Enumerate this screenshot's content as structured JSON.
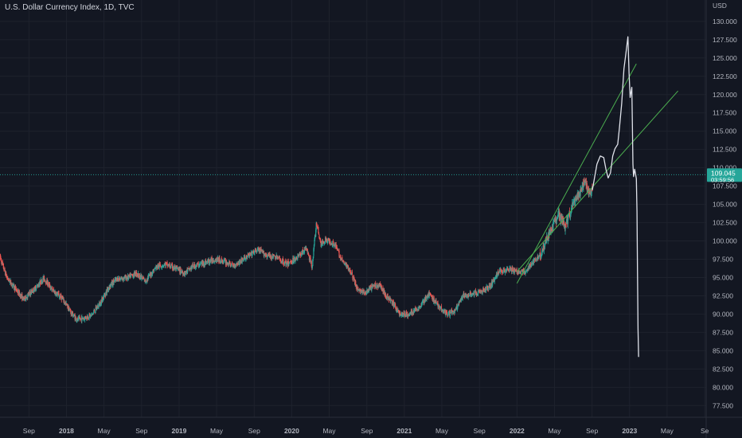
{
  "title": "U.S. Dollar Currency Index, 1D, TVC",
  "currency": "USD",
  "colors": {
    "background": "#131722",
    "up": "#26a69a",
    "down": "#ef5350",
    "channel": "#4caf50",
    "drawing": "#e0e3eb",
    "price_line": "#26a69a",
    "grid": "#1e222d"
  },
  "chart_data": {
    "type": "candlestick",
    "y_ticks": [
      "77.500",
      "80.000",
      "82.500",
      "85.000",
      "87.500",
      "90.000",
      "92.500",
      "95.000",
      "97.500",
      "100.000",
      "102.500",
      "105.000",
      "107.500",
      "110.000",
      "112.500",
      "115.000",
      "117.500",
      "120.000",
      "122.500",
      "125.000",
      "127.500",
      "130.000"
    ],
    "x_ticks": [
      {
        "label": "Sep",
        "t": 2017.667,
        "strong": false
      },
      {
        "label": "2018",
        "t": 2018.0,
        "strong": true
      },
      {
        "label": "May",
        "t": 2018.333,
        "strong": false
      },
      {
        "label": "Sep",
        "t": 2018.667,
        "strong": false
      },
      {
        "label": "2019",
        "t": 2019.0,
        "strong": true
      },
      {
        "label": "May",
        "t": 2019.333,
        "strong": false
      },
      {
        "label": "Sep",
        "t": 2019.667,
        "strong": false
      },
      {
        "label": "2020",
        "t": 2020.0,
        "strong": true
      },
      {
        "label": "May",
        "t": 2020.333,
        "strong": false
      },
      {
        "label": "Sep",
        "t": 2020.667,
        "strong": false
      },
      {
        "label": "2021",
        "t": 2021.0,
        "strong": true
      },
      {
        "label": "May",
        "t": 2021.333,
        "strong": false
      },
      {
        "label": "Sep",
        "t": 2021.667,
        "strong": false
      },
      {
        "label": "2022",
        "t": 2022.0,
        "strong": true
      },
      {
        "label": "May",
        "t": 2022.333,
        "strong": false
      },
      {
        "label": "Sep",
        "t": 2022.667,
        "strong": false
      },
      {
        "label": "2023",
        "t": 2023.0,
        "strong": true
      },
      {
        "label": "May",
        "t": 2023.333,
        "strong": false
      },
      {
        "label": "Se",
        "t": 2023.667,
        "strong": false
      }
    ],
    "x_range": [
      2017.41,
      2023.68
    ],
    "y_range": [
      75.9,
      131.4
    ],
    "price_trend": [
      [
        2017.41,
        97.8
      ],
      [
        2017.47,
        95.0
      ],
      [
        2017.55,
        93.4
      ],
      [
        2017.62,
        92.0
      ],
      [
        2017.72,
        93.5
      ],
      [
        2017.8,
        94.9
      ],
      [
        2017.88,
        93.2
      ],
      [
        2017.96,
        92.2
      ],
      [
        2018.05,
        90.0
      ],
      [
        2018.1,
        89.2
      ],
      [
        2018.22,
        89.8
      ],
      [
        2018.3,
        91.5
      ],
      [
        2018.38,
        93.8
      ],
      [
        2018.45,
        94.8
      ],
      [
        2018.55,
        95.0
      ],
      [
        2018.62,
        95.6
      ],
      [
        2018.7,
        94.5
      ],
      [
        2018.8,
        96.5
      ],
      [
        2018.88,
        96.8
      ],
      [
        2018.96,
        96.3
      ],
      [
        2019.05,
        95.6
      ],
      [
        2019.12,
        96.5
      ],
      [
        2019.22,
        97.0
      ],
      [
        2019.32,
        97.5
      ],
      [
        2019.4,
        97.2
      ],
      [
        2019.48,
        96.6
      ],
      [
        2019.55,
        97.3
      ],
      [
        2019.62,
        98.0
      ],
      [
        2019.7,
        98.8
      ],
      [
        2019.78,
        98.0
      ],
      [
        2019.86,
        97.8
      ],
      [
        2019.96,
        96.8
      ],
      [
        2020.05,
        97.8
      ],
      [
        2020.13,
        99.0
      ],
      [
        2020.18,
        96.5
      ],
      [
        2020.22,
        102.5
      ],
      [
        2020.26,
        99.5
      ],
      [
        2020.3,
        100.2
      ],
      [
        2020.38,
        99.6
      ],
      [
        2020.45,
        97.2
      ],
      [
        2020.52,
        96.0
      ],
      [
        2020.58,
        93.5
      ],
      [
        2020.65,
        92.8
      ],
      [
        2020.72,
        93.8
      ],
      [
        2020.78,
        94.0
      ],
      [
        2020.84,
        92.5
      ],
      [
        2020.9,
        91.4
      ],
      [
        2020.96,
        90.0
      ],
      [
        2021.04,
        89.9
      ],
      [
        2021.12,
        90.8
      ],
      [
        2021.22,
        92.7
      ],
      [
        2021.3,
        91.2
      ],
      [
        2021.38,
        90.0
      ],
      [
        2021.45,
        90.4
      ],
      [
        2021.52,
        92.4
      ],
      [
        2021.6,
        92.8
      ],
      [
        2021.68,
        93.0
      ],
      [
        2021.76,
        93.8
      ],
      [
        2021.84,
        95.8
      ],
      [
        2021.92,
        96.2
      ],
      [
        2022.0,
        95.8
      ],
      [
        2022.08,
        95.8
      ],
      [
        2022.15,
        97.2
      ],
      [
        2022.22,
        98.5
      ],
      [
        2022.3,
        101.5
      ],
      [
        2022.37,
        103.5
      ],
      [
        2022.43,
        102.0
      ],
      [
        2022.5,
        105.0
      ],
      [
        2022.56,
        106.5
      ],
      [
        2022.6,
        108.3
      ],
      [
        2022.64,
        106.5
      ],
      [
        2022.67,
        107.0
      ]
    ],
    "last_price": "109.045",
    "countdown": "03:59:56",
    "last_price_value": 109.045,
    "channel_lines": [
      {
        "from": [
          2022.0,
          94.2
        ],
        "to": [
          2023.06,
          124.2
        ]
      },
      {
        "from": [
          2022.0,
          95.8
        ],
        "to": [
          2023.43,
          120.5
        ]
      }
    ],
    "drawn_projection": [
      [
        2022.67,
        107.0
      ],
      [
        2022.71,
        110.5
      ],
      [
        2022.74,
        111.6
      ],
      [
        2022.77,
        111.4
      ],
      [
        2022.79,
        109.8
      ],
      [
        2022.81,
        108.6
      ],
      [
        2022.83,
        109.3
      ],
      [
        2022.85,
        111.6
      ],
      [
        2022.87,
        112.6
      ],
      [
        2022.895,
        113.2
      ],
      [
        2022.91,
        115.5
      ],
      [
        2022.93,
        118.8
      ],
      [
        2022.95,
        123.5
      ],
      [
        2022.97,
        126.0
      ],
      [
        2022.985,
        127.9
      ],
      [
        2022.995,
        123.0
      ],
      [
        2023.005,
        119.6
      ],
      [
        2023.02,
        121.0
      ],
      [
        2023.025,
        116.0
      ],
      [
        2023.03,
        110.5
      ],
      [
        2023.035,
        108.8
      ],
      [
        2023.045,
        109.8
      ],
      [
        2023.06,
        108.5
      ],
      [
        2023.066,
        104.0
      ],
      [
        2023.07,
        96.0
      ],
      [
        2023.075,
        88.0
      ],
      [
        2023.08,
        84.2
      ]
    ]
  }
}
